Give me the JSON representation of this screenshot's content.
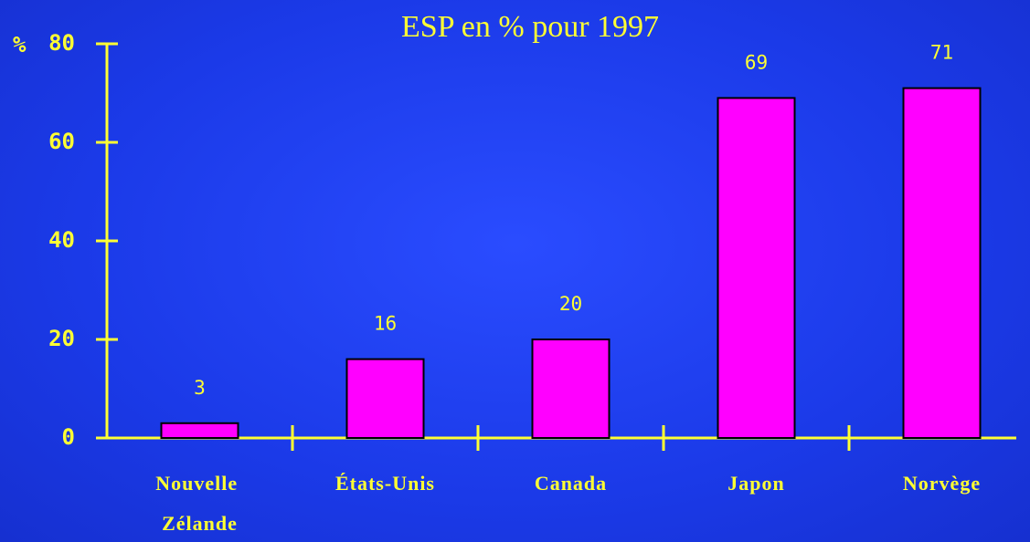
{
  "chart_data": {
    "type": "bar",
    "title": "ESP en % pour 1997",
    "y_label": "%",
    "categories": [
      "Nouvelle Zélande",
      "États-Unis",
      "Canada",
      "Japon",
      "Norvège"
    ],
    "values": [
      3,
      16,
      20,
      69,
      71
    ],
    "color": "#ff00ff",
    "ylim": [
      0,
      80
    ],
    "yticks": [
      0,
      20,
      40,
      60,
      80
    ],
    "grid": false
  }
}
